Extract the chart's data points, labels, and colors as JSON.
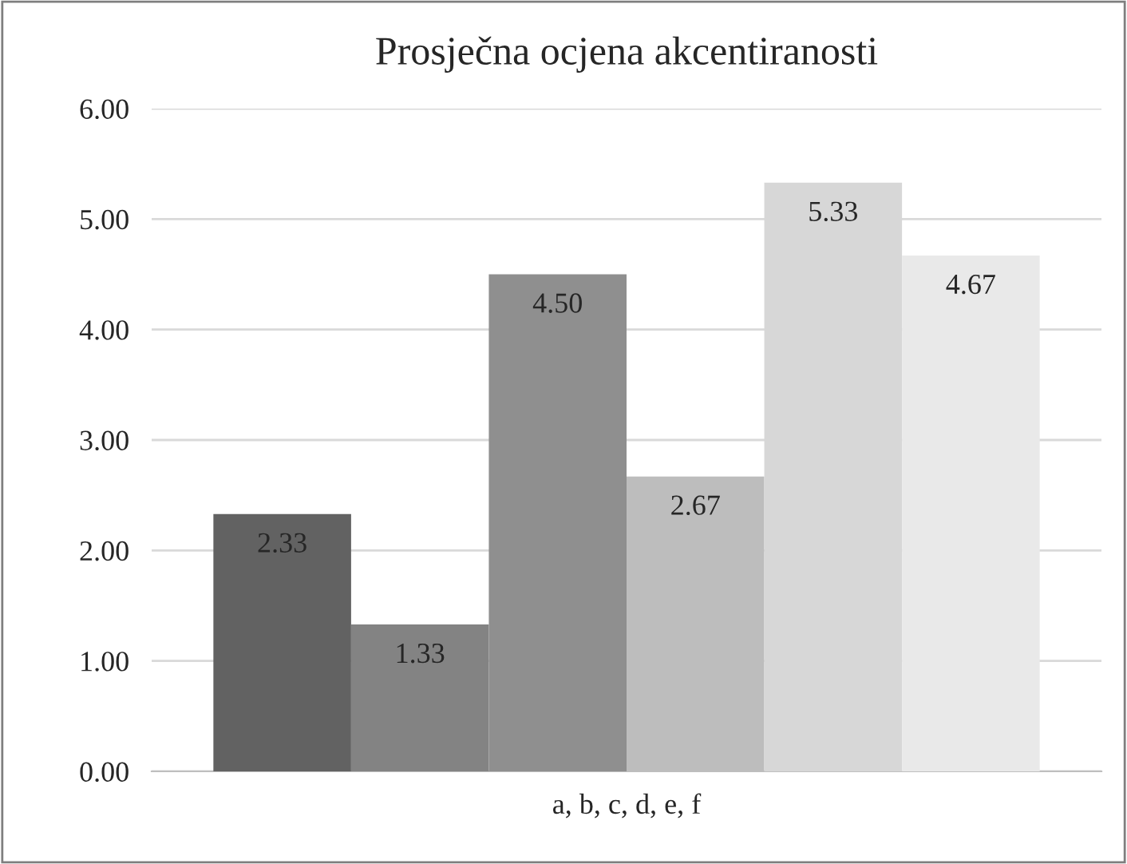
{
  "chart_data": {
    "type": "bar",
    "title": "Prosječna ocjena akcentiranosti",
    "categories": [
      "a, b, c, d, e, f"
    ],
    "series": [
      {
        "color": "#626262",
        "values": [
          2.33
        ],
        "value_labels": [
          "2.33"
        ]
      },
      {
        "color": "#838383",
        "values": [
          1.33
        ],
        "value_labels": [
          "1.33"
        ]
      },
      {
        "color": "#8f8f8f",
        "values": [
          4.5
        ],
        "value_labels": [
          "4.50"
        ]
      },
      {
        "color": "#bdbdbd",
        "values": [
          2.67
        ],
        "value_labels": [
          "2.67"
        ]
      },
      {
        "color": "#d7d7d7",
        "values": [
          5.33
        ],
        "value_labels": [
          "5.33"
        ]
      },
      {
        "color": "#e9e9e9",
        "values": [
          4.67
        ],
        "value_labels": [
          "4.67"
        ]
      }
    ],
    "ylim": [
      0,
      6
    ],
    "yticks": [
      {
        "value": 0,
        "label": "0.00"
      },
      {
        "value": 1,
        "label": "1.00"
      },
      {
        "value": 2,
        "label": "2.00"
      },
      {
        "value": 3,
        "label": "3.00"
      },
      {
        "value": 4,
        "label": "4.00"
      },
      {
        "value": 5,
        "label": "5.00"
      },
      {
        "value": 6,
        "label": "6.00"
      }
    ],
    "grid": "y"
  }
}
